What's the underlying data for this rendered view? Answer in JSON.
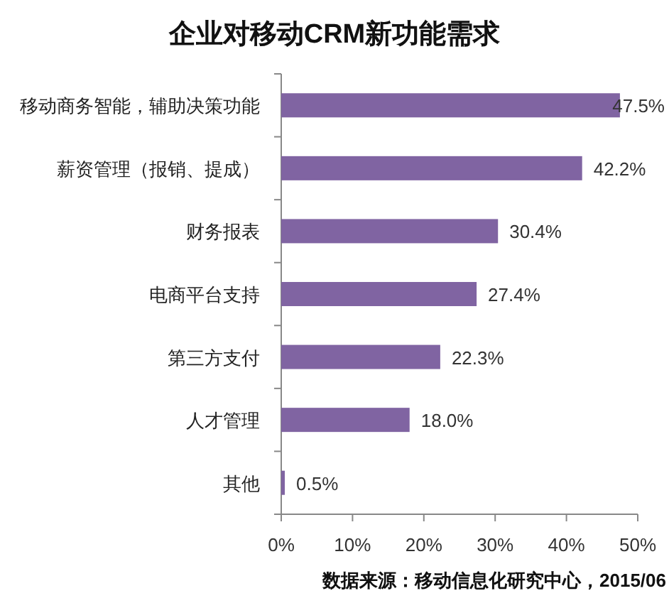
{
  "chart_data": {
    "type": "bar",
    "orientation": "horizontal",
    "title": "企业对移动CRM新功能需求",
    "categories": [
      "移动商务智能，辅助决策功能",
      "薪资管理（报销、提成）",
      "财务报表",
      "电商平台支持",
      "第三方支付",
      "人才管理",
      "其他"
    ],
    "series": [
      {
        "color": "#8064a2",
        "values": [
          47.5,
          42.2,
          30.4,
          27.4,
          22.3,
          18.0,
          0.5
        ],
        "value_labels": [
          "47.5%",
          "42.2%",
          "30.4%",
          "27.4%",
          "22.3%",
          "18.0%",
          "0.5%"
        ]
      }
    ],
    "xlim": [
      0,
      50
    ],
    "xticks": [
      {
        "value": 0,
        "label": "0%"
      },
      {
        "value": 10,
        "label": "10%"
      },
      {
        "value": 20,
        "label": "20%"
      },
      {
        "value": 30,
        "label": "30%"
      },
      {
        "value": 40,
        "label": "40%"
      },
      {
        "value": 50,
        "label": "50%"
      }
    ],
    "grid": false,
    "annotations": [
      "数据来源：移动信息化研究中心，2015/06"
    ]
  }
}
